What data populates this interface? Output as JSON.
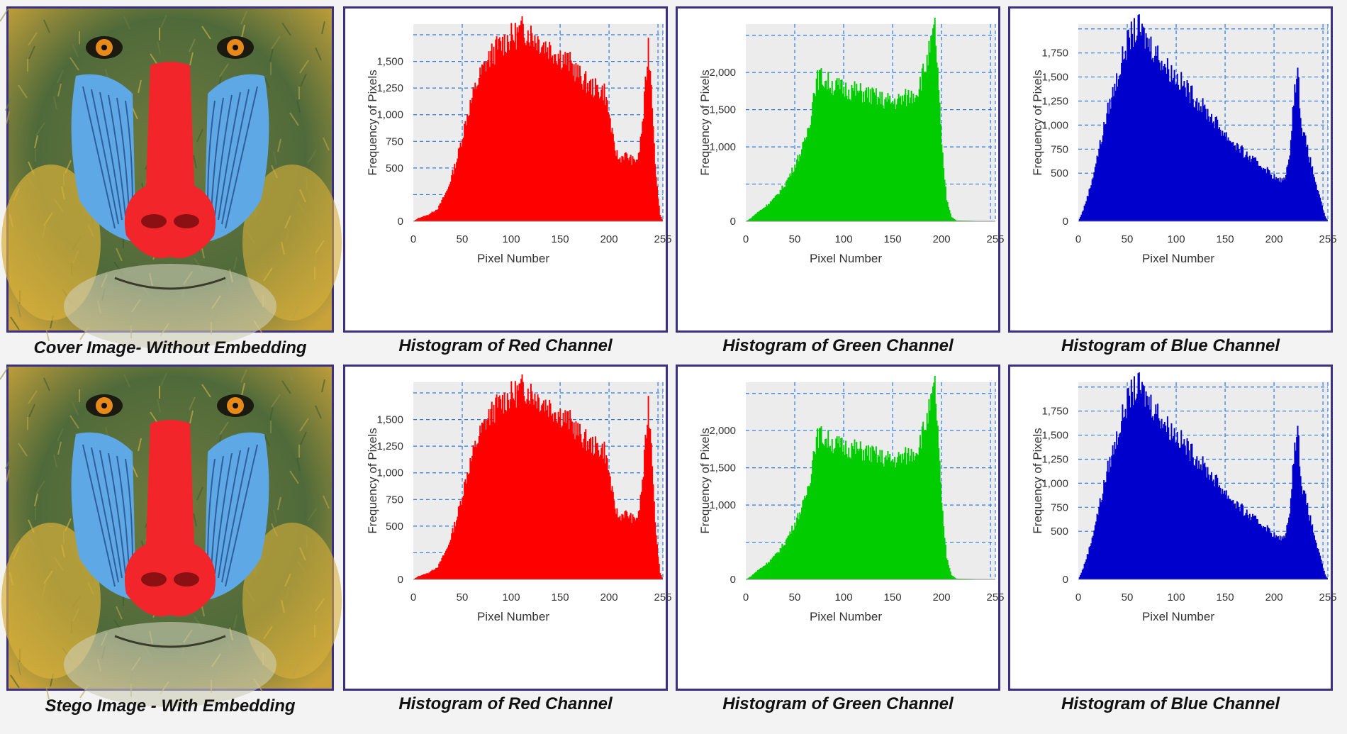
{
  "rows": [
    {
      "image_caption": "Cover Image- Without Embedding",
      "image_label": "mandrill-cover"
    },
    {
      "image_caption": "Stego Image - With Embedding",
      "image_label": "mandrill-stego"
    }
  ],
  "chart_data": [
    {
      "type": "area",
      "channel": "red",
      "color": "#ff0000",
      "title": "Histogram of Red Channel",
      "xlabel": "Pixel Number",
      "ylabel": "Frequency of Pixels",
      "xlim": [
        0,
        255
      ],
      "ylim": [
        0,
        1850
      ],
      "xticks": [
        "0",
        "50",
        "100",
        "150",
        "200",
        "255"
      ],
      "yticks": [
        {
          "v": 0,
          "l": "0"
        },
        {
          "v": 500,
          "l": "500"
        },
        {
          "v": 750,
          "l": "750"
        },
        {
          "v": 1000,
          "l": "1,000"
        },
        {
          "v": 1250,
          "l": "1,250"
        },
        {
          "v": 1500,
          "l": "1,500"
        }
      ],
      "grid_x": [
        50,
        100,
        150,
        200,
        250,
        255
      ],
      "grid_y": [
        250,
        500,
        750,
        1000,
        1250,
        1500,
        1750
      ],
      "envelope": [
        [
          0,
          0
        ],
        [
          5,
          30
        ],
        [
          15,
          60
        ],
        [
          25,
          120
        ],
        [
          35,
          300
        ],
        [
          45,
          600
        ],
        [
          55,
          1000
        ],
        [
          65,
          1300
        ],
        [
          75,
          1500
        ],
        [
          85,
          1620
        ],
        [
          95,
          1700
        ],
        [
          105,
          1750
        ],
        [
          112,
          1800
        ],
        [
          120,
          1760
        ],
        [
          130,
          1680
        ],
        [
          140,
          1620
        ],
        [
          150,
          1550
        ],
        [
          160,
          1480
        ],
        [
          170,
          1360
        ],
        [
          180,
          1270
        ],
        [
          190,
          1230
        ],
        [
          195,
          1220
        ],
        [
          200,
          1000
        ],
        [
          205,
          700
        ],
        [
          210,
          580
        ],
        [
          215,
          620
        ],
        [
          220,
          600
        ],
        [
          225,
          560
        ],
        [
          230,
          600
        ],
        [
          235,
          1000
        ],
        [
          240,
          1650
        ],
        [
          243,
          1300
        ],
        [
          248,
          400
        ],
        [
          252,
          60
        ],
        [
          255,
          0
        ]
      ]
    },
    {
      "type": "area",
      "channel": "green",
      "color": "#00cc00",
      "title": "Histogram of Green Channel",
      "xlabel": "Pixel Number",
      "ylabel": "Frequency of Pixels",
      "xlim": [
        0,
        255
      ],
      "ylim": [
        0,
        2650
      ],
      "xticks": [
        "0",
        "50",
        "100",
        "150",
        "200",
        "255"
      ],
      "yticks": [
        {
          "v": 0,
          "l": "0"
        },
        {
          "v": 1000,
          "l": "1,000"
        },
        {
          "v": 1500,
          "l": "1,500"
        },
        {
          "v": 2000,
          "l": "2,000"
        }
      ],
      "grid_x": [
        50,
        100,
        150,
        200,
        250,
        255
      ],
      "grid_y": [
        500,
        1000,
        1500,
        2000,
        2500
      ],
      "envelope": [
        [
          0,
          0
        ],
        [
          5,
          40
        ],
        [
          10,
          100
        ],
        [
          20,
          200
        ],
        [
          30,
          320
        ],
        [
          40,
          500
        ],
        [
          50,
          750
        ],
        [
          60,
          1050
        ],
        [
          66,
          1400
        ],
        [
          70,
          1800
        ],
        [
          75,
          1950
        ],
        [
          80,
          1900
        ],
        [
          90,
          1820
        ],
        [
          100,
          1780
        ],
        [
          110,
          1760
        ],
        [
          120,
          1720
        ],
        [
          130,
          1680
        ],
        [
          140,
          1630
        ],
        [
          150,
          1600
        ],
        [
          160,
          1640
        ],
        [
          170,
          1700
        ],
        [
          175,
          1750
        ],
        [
          180,
          1950
        ],
        [
          185,
          2150
        ],
        [
          190,
          2400
        ],
        [
          193,
          2600
        ],
        [
          196,
          2000
        ],
        [
          200,
          1000
        ],
        [
          205,
          300
        ],
        [
          210,
          60
        ],
        [
          215,
          10
        ],
        [
          255,
          0
        ]
      ]
    },
    {
      "type": "area",
      "channel": "blue",
      "color": "#0000cc",
      "title": "Histogram of Blue Channel",
      "xlabel": "Pixel Number",
      "ylabel": "Frequency of Pixels",
      "xlim": [
        0,
        255
      ],
      "ylim": [
        0,
        2050
      ],
      "xticks": [
        "0",
        "50",
        "100",
        "150",
        "200",
        "255"
      ],
      "yticks": [
        {
          "v": 0,
          "l": "0"
        },
        {
          "v": 500,
          "l": "500"
        },
        {
          "v": 750,
          "l": "750"
        },
        {
          "v": 1000,
          "l": "1,000"
        },
        {
          "v": 1250,
          "l": "1,250"
        },
        {
          "v": 1500,
          "l": "1,500"
        },
        {
          "v": 1750,
          "l": "1,750"
        }
      ],
      "grid_x": [
        50,
        100,
        150,
        200,
        250,
        255
      ],
      "grid_y": [
        500,
        750,
        1000,
        1250,
        1500,
        1750,
        2000
      ],
      "envelope": [
        [
          0,
          0
        ],
        [
          5,
          120
        ],
        [
          12,
          350
        ],
        [
          20,
          700
        ],
        [
          30,
          1150
        ],
        [
          40,
          1500
        ],
        [
          48,
          1800
        ],
        [
          55,
          1950
        ],
        [
          62,
          2000
        ],
        [
          70,
          1880
        ],
        [
          80,
          1750
        ],
        [
          90,
          1600
        ],
        [
          100,
          1500
        ],
        [
          110,
          1380
        ],
        [
          120,
          1270
        ],
        [
          130,
          1150
        ],
        [
          140,
          1030
        ],
        [
          150,
          900
        ],
        [
          160,
          800
        ],
        [
          170,
          700
        ],
        [
          180,
          620
        ],
        [
          190,
          560
        ],
        [
          200,
          460
        ],
        [
          205,
          420
        ],
        [
          210,
          440
        ],
        [
          215,
          600
        ],
        [
          220,
          1300
        ],
        [
          224,
          1550
        ],
        [
          228,
          1000
        ],
        [
          235,
          700
        ],
        [
          245,
          300
        ],
        [
          252,
          50
        ],
        [
          255,
          0
        ]
      ]
    }
  ]
}
